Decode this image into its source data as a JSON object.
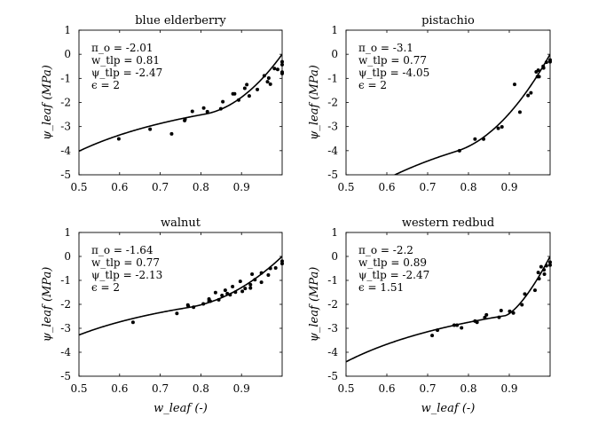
{
  "chart_data": [
    {
      "type": "scatter",
      "title": "blue elderberry",
      "xlabel": "",
      "ylabel": "ψ_leaf (MPa)",
      "xlim": [
        0.5,
        1.0
      ],
      "ylim": [
        -5,
        1
      ],
      "xticks": [
        "0.5",
        "0.6",
        "0.7",
        "0.8",
        "0.9"
      ],
      "yticks": [
        "1",
        "0",
        "-1",
        "-2",
        "-3",
        "-4",
        "-5"
      ],
      "grid": false,
      "params": {
        "pi_o": -2.01,
        "w_tlp": 0.81,
        "psi_tlp": -2.47,
        "epsilon": 2
      },
      "annotations": [
        "π_o = -2.01",
        "w_tlp = 0.81",
        "ψ_tlp = -2.47",
        "ϵ = 2"
      ],
      "points": [
        [
          0.598,
          -3.51
        ],
        [
          0.675,
          -3.11
        ],
        [
          0.728,
          -3.3
        ],
        [
          0.76,
          -2.75
        ],
        [
          0.761,
          -2.7
        ],
        [
          0.779,
          -2.37
        ],
        [
          0.807,
          -2.23
        ],
        [
          0.816,
          -2.38
        ],
        [
          0.849,
          -2.26
        ],
        [
          0.854,
          -1.97
        ],
        [
          0.879,
          -1.64
        ],
        [
          0.883,
          -1.64
        ],
        [
          0.893,
          -1.9
        ],
        [
          0.908,
          -1.41
        ],
        [
          0.913,
          -1.26
        ],
        [
          0.919,
          -1.73
        ],
        [
          0.939,
          -1.46
        ],
        [
          0.956,
          -0.89
        ],
        [
          0.964,
          -1.14
        ],
        [
          0.967,
          -0.99
        ],
        [
          0.971,
          -1.24
        ],
        [
          0.981,
          -0.59
        ],
        [
          0.989,
          -0.63
        ],
        [
          1.0,
          -0.31
        ],
        [
          1.0,
          -0.43
        ],
        [
          1.0,
          -0.74
        ],
        [
          1.0,
          -0.8
        ]
      ]
    },
    {
      "type": "scatter",
      "title": "pistachio",
      "xlabel": "",
      "ylabel": "ψ_leaf (MPa)",
      "xlim": [
        0.5,
        1.0
      ],
      "ylim": [
        -5,
        1
      ],
      "xticks": [
        "0.5",
        "0.6",
        "0.7",
        "0.8",
        "0.9"
      ],
      "yticks": [
        "1",
        "0",
        "-1",
        "-2",
        "-3",
        "-4",
        "-5"
      ],
      "grid": false,
      "params": {
        "pi_o": -3.1,
        "w_tlp": 0.77,
        "psi_tlp": -4.05,
        "epsilon": 2
      },
      "annotations": [
        "π_o = -3.1",
        "w_tlp = 0.77",
        "ψ_tlp = -4.05",
        "ϵ = 2"
      ],
      "points": [
        [
          0.778,
          -4.0
        ],
        [
          0.816,
          -3.52
        ],
        [
          0.837,
          -3.52
        ],
        [
          0.873,
          -3.07
        ],
        [
          0.882,
          -3.01
        ],
        [
          0.913,
          -1.25
        ],
        [
          0.926,
          -2.4
        ],
        [
          0.946,
          -1.71
        ],
        [
          0.953,
          -1.6
        ],
        [
          0.966,
          -0.73
        ],
        [
          0.971,
          -0.66
        ],
        [
          0.969,
          -0.93
        ],
        [
          0.973,
          -0.93
        ],
        [
          0.983,
          -0.5
        ],
        [
          0.984,
          -0.57
        ],
        [
          0.991,
          -0.33
        ],
        [
          1.0,
          -0.24
        ],
        [
          1.0,
          -0.31
        ]
      ]
    },
    {
      "type": "scatter",
      "title": "walnut",
      "xlabel": "w_leaf (-)",
      "ylabel": "ψ_leaf (MPa)",
      "xlim": [
        0.5,
        1.0
      ],
      "ylim": [
        -5,
        1
      ],
      "xticks": [
        "0.5",
        "0.6",
        "0.7",
        "0.8",
        "0.9"
      ],
      "yticks": [
        "1",
        "0",
        "-1",
        "-2",
        "-3",
        "-4",
        "-5"
      ],
      "grid": false,
      "params": {
        "pi_o": -1.64,
        "w_tlp": 0.77,
        "psi_tlp": -2.13,
        "epsilon": 2
      },
      "annotations": [
        "π_o = -1.64",
        "w_tlp = 0.77",
        "ψ_tlp = -2.13",
        "ϵ = 2"
      ],
      "points": [
        [
          0.633,
          -2.75
        ],
        [
          0.741,
          -2.38
        ],
        [
          0.768,
          -2.03
        ],
        [
          0.769,
          -2.08
        ],
        [
          0.782,
          -2.12
        ],
        [
          0.806,
          -1.98
        ],
        [
          0.82,
          -1.78
        ],
        [
          0.82,
          -1.87
        ],
        [
          0.823,
          -1.87
        ],
        [
          0.836,
          -1.51
        ],
        [
          0.844,
          -1.81
        ],
        [
          0.852,
          -1.63
        ],
        [
          0.86,
          -1.41
        ],
        [
          0.865,
          -1.55
        ],
        [
          0.872,
          -1.6
        ],
        [
          0.878,
          -1.26
        ],
        [
          0.885,
          -1.49
        ],
        [
          0.897,
          -1.04
        ],
        [
          0.902,
          -1.46
        ],
        [
          0.909,
          -1.34
        ],
        [
          0.922,
          -1.18
        ],
        [
          0.922,
          -1.32
        ],
        [
          0.926,
          -0.74
        ],
        [
          0.933,
          -0.97
        ],
        [
          0.949,
          -0.69
        ],
        [
          0.949,
          -1.08
        ],
        [
          0.966,
          -0.78
        ],
        [
          0.971,
          -0.5
        ],
        [
          0.984,
          -0.48
        ],
        [
          1.0,
          -0.2
        ],
        [
          1.0,
          -0.3
        ]
      ]
    },
    {
      "type": "scatter",
      "title": "western redbud",
      "xlabel": "w_leaf (-)",
      "ylabel": "ψ_leaf (MPa)",
      "xlim": [
        0.5,
        1.0
      ],
      "ylim": [
        -5,
        1
      ],
      "xticks": [
        "0.5",
        "0.6",
        "0.7",
        "0.8",
        "0.9"
      ],
      "yticks": [
        "1",
        "0",
        "-1",
        "-2",
        "-3",
        "-4",
        "-5"
      ],
      "grid": false,
      "params": {
        "pi_o": -2.2,
        "w_tlp": 0.89,
        "psi_tlp": -2.47,
        "epsilon": 1.51
      },
      "annotations": [
        "π_o = -2.2",
        "w_tlp = 0.89",
        "ψ_tlp = -2.47",
        "ϵ = 1.51"
      ],
      "points": [
        [
          0.711,
          -3.3
        ],
        [
          0.724,
          -3.08
        ],
        [
          0.765,
          -2.87
        ],
        [
          0.772,
          -2.87
        ],
        [
          0.783,
          -2.98
        ],
        [
          0.816,
          -2.7
        ],
        [
          0.821,
          -2.75
        ],
        [
          0.84,
          -2.55
        ],
        [
          0.844,
          -2.44
        ],
        [
          0.875,
          -2.54
        ],
        [
          0.88,
          -2.26
        ],
        [
          0.901,
          -2.29
        ],
        [
          0.91,
          -2.36
        ],
        [
          0.931,
          -2.02
        ],
        [
          0.938,
          -1.57
        ],
        [
          0.963,
          -1.41
        ],
        [
          0.971,
          -0.67
        ],
        [
          0.973,
          -0.93
        ],
        [
          0.978,
          -0.43
        ],
        [
          0.985,
          -0.56
        ],
        [
          0.986,
          -0.74
        ],
        [
          0.991,
          -0.39
        ],
        [
          1.0,
          -0.24
        ],
        [
          1.0,
          -0.36
        ]
      ]
    }
  ]
}
